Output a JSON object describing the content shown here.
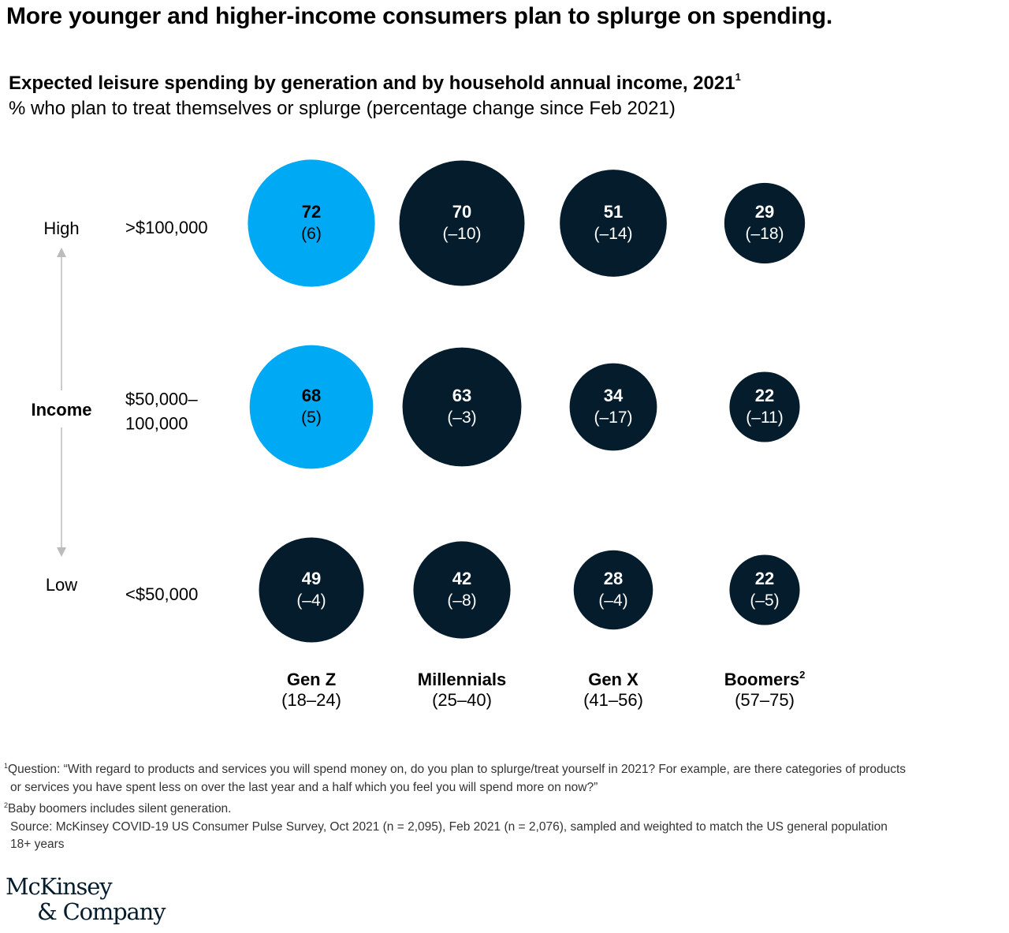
{
  "headline": "More younger and higher-income consumers plan to splurge on spending.",
  "colors": {
    "highlight": "#00a9f4",
    "dark": "#051c2c",
    "arrow": "#bbbbbb",
    "text": "#000000"
  },
  "chart_data": {
    "type": "bubble",
    "title": "Expected leisure spending by generation and by household annual income, 2021",
    "title_footnote": "1",
    "subtitle": "% who plan to treat themselves or splurge (percentage change since Feb 2021)",
    "y_axis": {
      "label": "Income",
      "top_label": "High",
      "bottom_label": "Low"
    },
    "rows": [
      {
        "lines": [
          ">$100,000"
        ]
      },
      {
        "lines": [
          "$50,000–",
          "100,000"
        ]
      },
      {
        "lines": [
          "<$50,000"
        ]
      }
    ],
    "columns": [
      {
        "name": "Gen Z",
        "sup": "",
        "range": "(18–24)"
      },
      {
        "name": "Millennials",
        "sup": "",
        "range": "(25–40)"
      },
      {
        "name": "Gen X",
        "sup": "",
        "range": "(41–56)"
      },
      {
        "name": "Boomers",
        "sup": "2",
        "range": "(57–75)"
      }
    ],
    "values": [
      [
        72,
        70,
        51,
        29
      ],
      [
        68,
        63,
        34,
        22
      ],
      [
        49,
        42,
        28,
        22
      ]
    ],
    "changes": [
      [
        "(6)",
        "(–10)",
        "(–14)",
        "(–18)"
      ],
      [
        "(5)",
        "(–3)",
        "(–17)",
        "(–11)"
      ],
      [
        "(–4)",
        "(–8)",
        "(–4)",
        "(–5)"
      ]
    ],
    "highlighted": [
      [
        true,
        false,
        false,
        false
      ],
      [
        true,
        false,
        false,
        false
      ],
      [
        false,
        false,
        false,
        false
      ]
    ]
  },
  "footnotes": {
    "fn1_marker": "1",
    "fn1_text": "Question: “With regard to products and services you will spend money on, do you plan to splurge/treat yourself in 2021? For example, are there categories of products",
    "fn1_cont": "or services you have spent less on over the last year and a half which you feel you will spend more on now?”",
    "fn2_marker": "2",
    "fn2_text": "Baby boomers includes silent generation.",
    "source": "Source: McKinsey COVID-19 US Consumer Pulse Survey, Oct 2021 (n = 2,095), Feb 2021 (n = 2,076), sampled and weighted to match the US general population",
    "source_cont": "18+ years"
  },
  "logo": {
    "line1": "McKinsey",
    "line2": "& Company"
  }
}
